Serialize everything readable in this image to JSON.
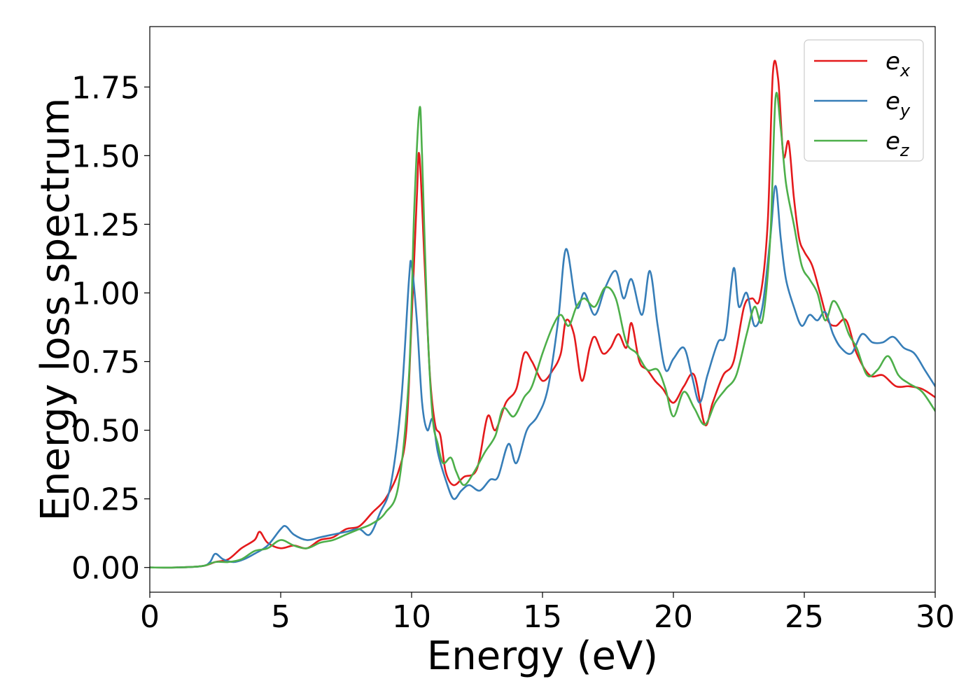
{
  "chart_data": {
    "type": "line",
    "title": "",
    "xlabel": "Energy (eV)",
    "ylabel": "Energy loss spectrum",
    "xlim": [
      0,
      30
    ],
    "ylim": [
      -0.09,
      1.97
    ],
    "xticks": [
      "0",
      "5",
      "10",
      "15",
      "20",
      "25",
      "30"
    ],
    "yticks": [
      "0.00",
      "0.25",
      "0.50",
      "0.75",
      "1.00",
      "1.25",
      "1.50",
      "1.75"
    ],
    "grid": false,
    "legend_position": "top-right",
    "series": [
      {
        "name": "e_x",
        "legend_base": "e",
        "legend_sub": "x",
        "color": "#e41a1c",
        "x": [
          0,
          1,
          2,
          2.5,
          3,
          3.5,
          4,
          4.2,
          4.5,
          5,
          5.5,
          6,
          6.5,
          7,
          7.5,
          8,
          8.5,
          9,
          9.5,
          9.8,
          10.0,
          10.2,
          10.3,
          10.5,
          10.7,
          10.9,
          11.1,
          11.3,
          11.6,
          12,
          12.5,
          12.9,
          13.2,
          13.6,
          14,
          14.3,
          14.6,
          15,
          15.4,
          15.7,
          15.9,
          16.2,
          16.5,
          16.8,
          17.0,
          17.3,
          17.6,
          17.9,
          18.2,
          18.4,
          18.7,
          19.0,
          19.3,
          19.6,
          20.0,
          20.4,
          20.8,
          21.2,
          21.5,
          21.9,
          22.3,
          22.7,
          23.0,
          23.3,
          23.6,
          23.8,
          24.0,
          24.2,
          24.4,
          24.6,
          24.8,
          25.0,
          25.3,
          25.6,
          25.9,
          26.2,
          26.6,
          27.0,
          27.5,
          28.0,
          28.5,
          29.0,
          29.5,
          30.0
        ],
        "y": [
          0.0,
          0.0,
          0.005,
          0.02,
          0.03,
          0.07,
          0.1,
          0.13,
          0.09,
          0.07,
          0.08,
          0.07,
          0.1,
          0.11,
          0.14,
          0.15,
          0.2,
          0.25,
          0.35,
          0.5,
          0.9,
          1.35,
          1.5,
          1.1,
          0.7,
          0.52,
          0.48,
          0.35,
          0.3,
          0.33,
          0.36,
          0.55,
          0.5,
          0.6,
          0.65,
          0.78,
          0.75,
          0.68,
          0.72,
          0.78,
          0.9,
          0.85,
          0.68,
          0.8,
          0.84,
          0.78,
          0.8,
          0.85,
          0.8,
          0.89,
          0.75,
          0.72,
          0.68,
          0.65,
          0.6,
          0.66,
          0.7,
          0.52,
          0.6,
          0.7,
          0.75,
          0.95,
          0.98,
          0.98,
          1.25,
          1.8,
          1.78,
          1.5,
          1.55,
          1.35,
          1.2,
          1.15,
          1.1,
          1.0,
          0.9,
          0.88,
          0.9,
          0.78,
          0.7,
          0.7,
          0.66,
          0.66,
          0.65,
          0.62
        ]
      },
      {
        "name": "e_y",
        "legend_base": "e",
        "legend_sub": "y",
        "color": "#377eb8",
        "x": [
          0,
          1,
          2,
          2.3,
          2.5,
          2.8,
          3.2,
          3.6,
          4.0,
          4.5,
          5.0,
          5.2,
          5.5,
          6.0,
          6.5,
          7.0,
          7.5,
          8.0,
          8.4,
          8.8,
          9.2,
          9.6,
          9.9,
          10.0,
          10.2,
          10.4,
          10.6,
          10.8,
          11.0,
          11.3,
          11.6,
          11.9,
          12.2,
          12.6,
          13.0,
          13.3,
          13.7,
          14.0,
          14.4,
          14.8,
          15.2,
          15.6,
          15.9,
          16.3,
          16.6,
          17.0,
          17.4,
          17.8,
          18.1,
          18.4,
          18.8,
          19.1,
          19.4,
          19.7,
          20.0,
          20.4,
          20.7,
          21.0,
          21.3,
          21.7,
          22.0,
          22.3,
          22.5,
          22.8,
          23.1,
          23.4,
          23.7,
          23.9,
          24.1,
          24.3,
          24.6,
          24.9,
          25.2,
          25.5,
          25.8,
          26.1,
          26.4,
          26.8,
          27.2,
          27.6,
          28.0,
          28.4,
          28.8,
          29.2,
          29.6,
          30.0
        ],
        "y": [
          0.0,
          0.0,
          0.005,
          0.02,
          0.05,
          0.03,
          0.02,
          0.03,
          0.05,
          0.08,
          0.14,
          0.15,
          0.12,
          0.1,
          0.11,
          0.12,
          0.13,
          0.14,
          0.12,
          0.2,
          0.3,
          0.6,
          1.05,
          1.1,
          0.9,
          0.6,
          0.5,
          0.54,
          0.42,
          0.32,
          0.25,
          0.28,
          0.3,
          0.28,
          0.32,
          0.33,
          0.45,
          0.38,
          0.5,
          0.55,
          0.65,
          0.9,
          1.16,
          0.95,
          1.0,
          0.92,
          1.02,
          1.08,
          0.98,
          1.05,
          0.92,
          1.08,
          0.88,
          0.72,
          0.76,
          0.8,
          0.7,
          0.6,
          0.7,
          0.82,
          0.85,
          1.09,
          0.95,
          1.0,
          0.88,
          0.95,
          1.2,
          1.39,
          1.2,
          1.05,
          0.95,
          0.88,
          0.92,
          0.9,
          0.93,
          0.85,
          0.8,
          0.78,
          0.85,
          0.82,
          0.82,
          0.84,
          0.8,
          0.78,
          0.72,
          0.66
        ]
      },
      {
        "name": "e_z",
        "legend_base": "e",
        "legend_sub": "z",
        "color": "#4daf4a",
        "x": [
          0,
          1,
          2,
          2.5,
          3,
          3.5,
          4,
          4.5,
          5,
          5.5,
          6,
          6.5,
          7,
          7.5,
          8,
          8.5,
          9,
          9.5,
          9.9,
          10.1,
          10.3,
          10.4,
          10.6,
          10.8,
          11.0,
          11.2,
          11.5,
          11.7,
          12.0,
          12.4,
          12.8,
          13.2,
          13.5,
          13.9,
          14.3,
          14.6,
          15.0,
          15.4,
          15.7,
          16.0,
          16.3,
          16.6,
          17.0,
          17.4,
          17.8,
          18.2,
          18.6,
          19.0,
          19.4,
          19.7,
          20.0,
          20.4,
          20.8,
          21.2,
          21.6,
          22.0,
          22.4,
          22.8,
          23.1,
          23.4,
          23.7,
          23.9,
          24.1,
          24.3,
          24.6,
          24.9,
          25.2,
          25.5,
          25.8,
          26.1,
          26.4,
          26.7,
          27.0,
          27.4,
          27.8,
          28.2,
          28.6,
          29.0,
          29.5,
          30.0
        ],
        "y": [
          0.0,
          0.0,
          0.005,
          0.02,
          0.02,
          0.03,
          0.06,
          0.07,
          0.1,
          0.08,
          0.07,
          0.09,
          0.1,
          0.12,
          0.14,
          0.16,
          0.2,
          0.3,
          0.7,
          1.3,
          1.67,
          1.5,
          0.9,
          0.55,
          0.45,
          0.38,
          0.4,
          0.35,
          0.3,
          0.35,
          0.42,
          0.48,
          0.58,
          0.55,
          0.62,
          0.66,
          0.78,
          0.88,
          0.92,
          0.88,
          0.95,
          0.98,
          0.95,
          1.02,
          0.98,
          0.82,
          0.78,
          0.72,
          0.72,
          0.65,
          0.55,
          0.64,
          0.58,
          0.52,
          0.6,
          0.65,
          0.7,
          0.85,
          0.95,
          0.9,
          1.2,
          1.71,
          1.6,
          1.4,
          1.25,
          1.1,
          1.05,
          1.0,
          0.9,
          0.97,
          0.93,
          0.85,
          0.8,
          0.7,
          0.72,
          0.77,
          0.7,
          0.67,
          0.64,
          0.57
        ]
      }
    ]
  }
}
